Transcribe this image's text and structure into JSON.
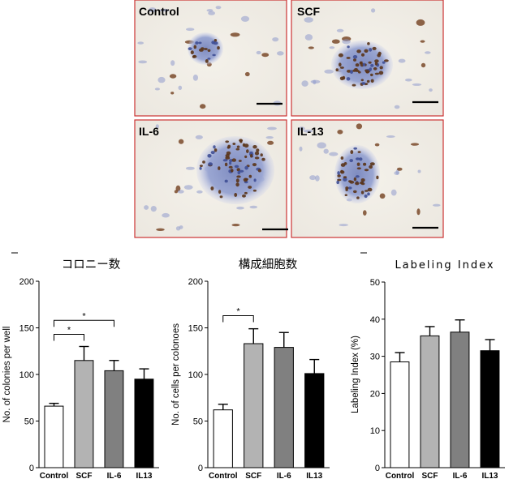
{
  "micrographs": [
    {
      "label": "Control"
    },
    {
      "label": "SCF"
    },
    {
      "label": "IL-6"
    },
    {
      "label": "IL-13"
    }
  ],
  "colors": {
    "panel_border": "#cc3333",
    "bars": [
      "#ffffff",
      "#b3b3b3",
      "#808080",
      "#000000"
    ]
  },
  "chart_data": [
    {
      "type": "bar",
      "title": "コロニー数",
      "ylabel": "No. of colonies per well",
      "categories": [
        "Control",
        "SCF",
        "IL-6",
        "IL13"
      ],
      "values": [
        66,
        115,
        104,
        95
      ],
      "errors": [
        3,
        15,
        11,
        11
      ],
      "ylim": [
        0,
        200
      ],
      "yticks": [
        "0",
        "50",
        "100",
        "150",
        "200"
      ],
      "significance": [
        {
          "from": 0,
          "to": 1,
          "label": "*",
          "level": 143
        },
        {
          "from": 0,
          "to": 2,
          "label": "*",
          "level": 158
        }
      ]
    },
    {
      "type": "bar",
      "title": "構成細胞数",
      "ylabel": "No. of cells per colonoes",
      "categories": [
        "Control",
        "SCF",
        "IL-6",
        "IL13"
      ],
      "values": [
        62,
        133,
        129,
        101
      ],
      "errors": [
        6,
        16,
        16,
        15
      ],
      "ylim": [
        0,
        200
      ],
      "yticks": [
        "0",
        "50",
        "100",
        "150",
        "200"
      ],
      "significance": [
        {
          "from": 0,
          "to": 1,
          "label": "*",
          "level": 163
        }
      ]
    },
    {
      "type": "bar",
      "title": "Labeling Index",
      "ylabel": "Labeling Index (%)",
      "categories": [
        "Control",
        "SCF",
        "IL-6",
        "IL13"
      ],
      "values": [
        28.5,
        35.5,
        36.5,
        31.5
      ],
      "errors": [
        2.5,
        2.5,
        3.3,
        3.0
      ],
      "ylim": [
        0,
        50
      ],
      "yticks": [
        "0",
        "10",
        "20",
        "30",
        "40",
        "50"
      ],
      "significance": []
    }
  ]
}
